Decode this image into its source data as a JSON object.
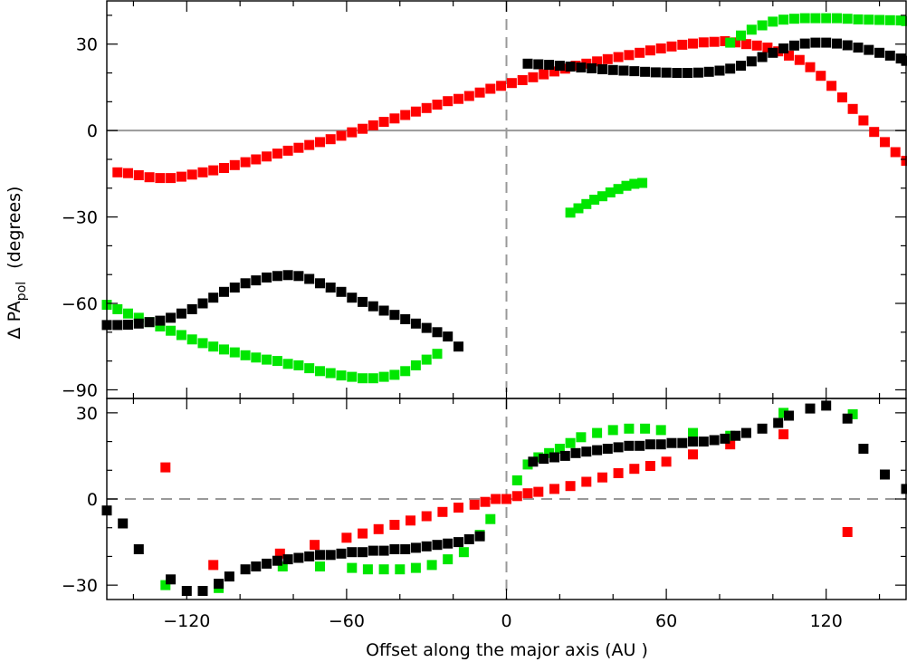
{
  "chart_data": [
    {
      "type": "scatter",
      "panel": "top",
      "ylabel_prefix": "Δ PA",
      "ylabel_sub": "pol",
      "ylabel_suffix": "(degrees)",
      "xlim": [
        -150,
        150
      ],
      "ylim": [
        -93,
        45
      ],
      "yticks": [
        30,
        0,
        -30,
        -60,
        -90
      ],
      "ytick_labels": [
        "30",
        "0",
        "−30",
        "−60",
        "−90"
      ],
      "hline": 0,
      "vline": 0,
      "marker_size": 11,
      "series": [
        {
          "color": "#ff0000",
          "x": [
            -146,
            -142,
            -138,
            -134,
            -130,
            -126,
            -122,
            -118,
            -114,
            -110,
            -106,
            -102,
            -98,
            -94,
            -90,
            -86,
            -82,
            -78,
            -74,
            -70,
            -66,
            -62,
            -58,
            -54,
            -50,
            -46,
            -42,
            -38,
            -34,
            -30,
            -26,
            -22,
            -18,
            -14,
            -10,
            -6,
            -2,
            2,
            6,
            10,
            14,
            18,
            22,
            26,
            30,
            34,
            38,
            42,
            46,
            50,
            54,
            58,
            62,
            66,
            70,
            74,
            78,
            82,
            86,
            90,
            94,
            98,
            102,
            106,
            110,
            114,
            118,
            122,
            126,
            130,
            134,
            138,
            142,
            146,
            150
          ],
          "y": [
            -14.5,
            -14.8,
            -15.5,
            -16.2,
            -16.5,
            -16.5,
            -16,
            -15.3,
            -14.5,
            -13.8,
            -13,
            -12,
            -11,
            -10,
            -9,
            -8,
            -7,
            -6,
            -5,
            -4,
            -3,
            -1.8,
            -0.6,
            0.6,
            1.8,
            3,
            4.2,
            5.4,
            6.6,
            7.8,
            9,
            10.2,
            11,
            12,
            13.2,
            14.5,
            15.5,
            16.5,
            17.5,
            18.5,
            19.5,
            20.5,
            21.5,
            22.5,
            23.2,
            24,
            24.8,
            25.5,
            26.2,
            27,
            27.8,
            28.5,
            29.2,
            29.8,
            30.2,
            30.6,
            30.8,
            31,
            30.6,
            30,
            29.5,
            28.8,
            27.5,
            26,
            24.5,
            22,
            19,
            15.5,
            11.5,
            7.5,
            3.5,
            -0.5,
            -4,
            -7.5,
            -10.5
          ]
        },
        {
          "color": "#00e600",
          "x": [
            -150,
            -146,
            -142,
            -138,
            -134,
            -130,
            -126,
            -122,
            -118,
            -114,
            -110,
            -106,
            -102,
            -98,
            -94,
            -90,
            -86,
            -82,
            -78,
            -74,
            -70,
            -66,
            -62,
            -58,
            -54,
            -50,
            -46,
            -42,
            -38,
            -34,
            -30,
            -26
          ],
          "y": [
            -60.5,
            -62,
            -63.5,
            -65,
            -66.5,
            -68,
            -69.5,
            -71,
            -72.5,
            -73.8,
            -75,
            -76,
            -77,
            -78,
            -78.8,
            -79.5,
            -80,
            -81,
            -81.5,
            -82.5,
            -83.5,
            -84.2,
            -85,
            -85.5,
            -86,
            -86,
            -85.5,
            -84.8,
            -83.5,
            -81.5,
            -79.5,
            -77.5
          ]
        },
        {
          "color": "#00e600",
          "x": [
            24,
            27,
            30,
            33,
            36,
            39,
            42,
            45,
            48,
            51
          ],
          "y": [
            -28.5,
            -27,
            -25.5,
            -24,
            -22.8,
            -21.5,
            -20.3,
            -19.2,
            -18.5,
            -18.2
          ]
        },
        {
          "color": "#00e600",
          "x": [
            84,
            88,
            92,
            96,
            100,
            104,
            108,
            112,
            116,
            120,
            124,
            128,
            132,
            136,
            140,
            144,
            148,
            150
          ],
          "y": [
            30.5,
            33,
            35,
            36.5,
            37.8,
            38.5,
            38.8,
            39,
            39,
            39,
            39,
            38.8,
            38.6,
            38.5,
            38.4,
            38.3,
            38.2,
            38
          ]
        },
        {
          "color": "#000000",
          "x": [
            -150,
            -146,
            -142,
            -138,
            -134,
            -130,
            -126,
            -122,
            -118,
            -114,
            -110,
            -106,
            -102,
            -98,
            -94,
            -90,
            -86,
            -82,
            -78,
            -74,
            -70,
            -66,
            -62,
            -58,
            -54,
            -50,
            -46,
            -42,
            -38,
            -34,
            -30,
            -26,
            -22,
            -18
          ],
          "y": [
            -67.5,
            -67.5,
            -67.4,
            -67,
            -66.5,
            -66,
            -65,
            -63.5,
            -62,
            -60,
            -58,
            -56,
            -54.5,
            -53,
            -52,
            -51,
            -50.5,
            -50.2,
            -50.5,
            -51.5,
            -53,
            -54.5,
            -56,
            -58,
            -59.5,
            -61,
            -62.5,
            -64,
            -65.5,
            -67,
            -68.5,
            -70,
            -71.5,
            -75
          ]
        },
        {
          "color": "#000000",
          "x": [
            8,
            12,
            16,
            20,
            24,
            28,
            32,
            36,
            40,
            44,
            48,
            52,
            56,
            60,
            64,
            68,
            72,
            76,
            80,
            84,
            88,
            92,
            96,
            100,
            104,
            108,
            112,
            116,
            120,
            124,
            128,
            132,
            136,
            140,
            144,
            148,
            150
          ],
          "y": [
            23.2,
            23,
            22.8,
            22.5,
            22.2,
            21.9,
            21.6,
            21.3,
            21,
            20.8,
            20.6,
            20.4,
            20.2,
            20.1,
            20,
            20,
            20.1,
            20.4,
            20.8,
            21.5,
            22.5,
            24,
            25.5,
            27,
            28.5,
            29.5,
            30.2,
            30.5,
            30.5,
            30.2,
            29.6,
            28.8,
            28,
            27,
            26,
            25,
            24.2
          ]
        }
      ]
    },
    {
      "type": "scatter",
      "panel": "bottom",
      "xlabel": "Offset along the major axis (AU )",
      "xlim": [
        -150,
        150
      ],
      "ylim": [
        -35,
        35
      ],
      "xticks": [
        -120,
        -60,
        0,
        60,
        120
      ],
      "xtick_labels": [
        "−120",
        "−60",
        "0",
        "60",
        "120"
      ],
      "yticks": [
        30,
        0,
        -30
      ],
      "ytick_labels": [
        "30",
        "0",
        "−30"
      ],
      "hline": 0,
      "vline": 0,
      "marker_size": 11,
      "series": [
        {
          "color": "#ff0000",
          "x": [
            -128,
            -110,
            -85,
            -72,
            -60,
            -54,
            -48,
            -42,
            -36,
            -30,
            -24,
            -18,
            -12,
            -8,
            -4,
            0,
            4,
            8,
            12,
            18,
            24,
            30,
            36,
            42,
            48,
            54,
            60,
            70,
            84,
            104,
            128
          ],
          "y": [
            11,
            -23,
            -19,
            -16,
            -13.5,
            -12,
            -10.5,
            -9,
            -7.5,
            -6,
            -4.5,
            -3,
            -2,
            -1,
            0,
            0,
            1,
            2,
            2.5,
            3.5,
            4.5,
            6,
            7.5,
            9,
            10.5,
            11.5,
            13,
            15.5,
            19,
            22.5,
            -11.5
          ]
        },
        {
          "color": "#00e600",
          "x": [
            -128,
            -108,
            -84,
            -70,
            -58,
            -52,
            -46,
            -40,
            -34,
            -28,
            -22,
            -16,
            -10,
            -6,
            4,
            8,
            12,
            16,
            20,
            24,
            28,
            34,
            40,
            46,
            52,
            58,
            70,
            84,
            104,
            130
          ],
          "y": [
            -30,
            -31,
            -23.5,
            -23.5,
            -24,
            -24.5,
            -24.5,
            -24.5,
            -24,
            -23,
            -21,
            -18.5,
            -12.5,
            -7,
            6.5,
            12,
            14.5,
            16,
            17.5,
            19.5,
            21.5,
            23,
            24,
            24.5,
            24.5,
            24,
            23,
            22,
            30,
            29.5
          ]
        },
        {
          "color": "#000000",
          "x": [
            -150,
            -144,
            -138,
            -126,
            -120,
            -114,
            -108,
            -104,
            -98,
            -94,
            -90,
            -86,
            -82,
            -78,
            -74,
            -70,
            -66,
            -62,
            -58,
            -54,
            -50,
            -46,
            -42,
            -38,
            -34,
            -30,
            -26,
            -22,
            -18,
            -14,
            -10,
            10,
            14,
            18,
            22,
            26,
            30,
            34,
            38,
            42,
            46,
            50,
            54,
            58,
            62,
            66,
            70,
            74,
            78,
            82,
            86,
            90,
            96,
            102,
            106,
            114,
            120,
            128,
            134,
            142,
            150
          ],
          "y": [
            -4,
            -8.5,
            -17.5,
            -28,
            -32,
            -32,
            -29.5,
            -27,
            -24.5,
            -23.5,
            -22.5,
            -21.5,
            -21,
            -20.5,
            -20,
            -19.5,
            -19.5,
            -19,
            -18.5,
            -18.5,
            -18,
            -18,
            -17.5,
            -17.5,
            -17,
            -16.5,
            -16,
            -15.5,
            -15,
            -14,
            -13,
            13,
            14,
            14.5,
            15,
            16,
            16.5,
            17,
            17.5,
            18,
            18.5,
            18.5,
            19,
            19,
            19.5,
            19.5,
            20,
            20,
            20.5,
            21,
            22,
            23,
            24.5,
            26.5,
            29,
            31.5,
            32.5,
            28,
            17.5,
            8.5,
            3.5
          ]
        }
      ]
    }
  ]
}
